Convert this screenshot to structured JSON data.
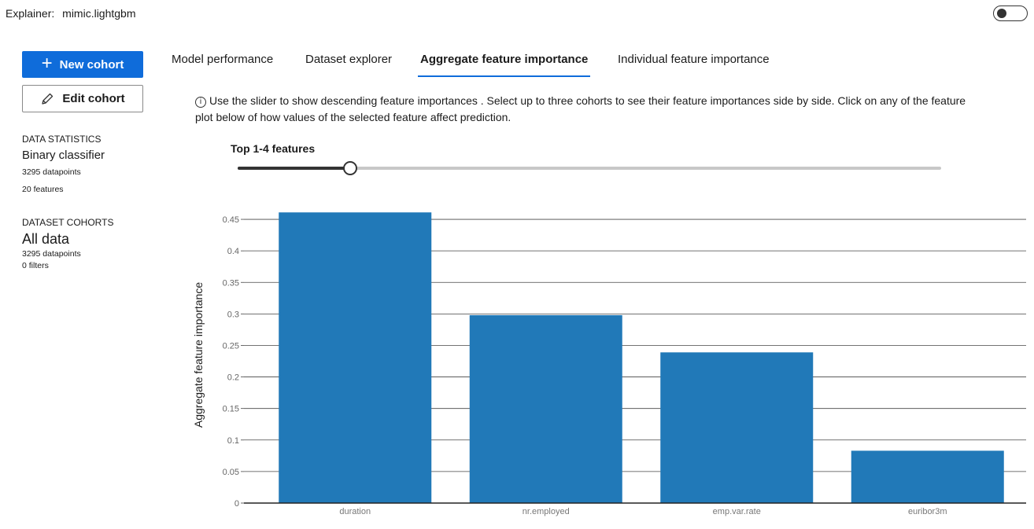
{
  "header": {
    "explainer_label": "Explainer:",
    "explainer_value": "mimic.lightgbm"
  },
  "sidebar": {
    "new_cohort_label": "New cohort",
    "edit_cohort_label": "Edit cohort",
    "stats_heading": "DATA STATISTICS",
    "stats_type": "Binary classifier",
    "stats_datapoints": "3295 datapoints",
    "stats_features": "20 features",
    "cohorts_heading": "DATASET COHORTS",
    "cohort_name": "All data",
    "cohort_datapoints": "3295 datapoints",
    "cohort_filters": "0 filters"
  },
  "tabs": [
    {
      "label": "Model performance"
    },
    {
      "label": "Dataset explorer"
    },
    {
      "label": "Aggregate feature importance"
    },
    {
      "label": "Individual feature importance"
    }
  ],
  "main": {
    "instruction_line1": "Use the slider to show descending feature importances . Select up to three cohorts to see their feature importances side by side. Click on any of the feature",
    "instruction_line2": "plot below of how values of the selected feature affect prediction.",
    "slider_label": "Top 1-4 features",
    "slider_value_fraction": 0.16
  },
  "colors": {
    "accent": "#0f6cda",
    "bar": "#2179b8"
  },
  "chart_data": {
    "type": "bar",
    "categories": [
      "duration",
      "nr.employed",
      "emp.var.rate",
      "euribor3m"
    ],
    "values": [
      0.461,
      0.298,
      0.239,
      0.083
    ],
    "ylabel": "Aggregate feature importance",
    "ylim": [
      0,
      0.47
    ],
    "yticks": [
      "0",
      "0.05",
      "0.1",
      "0.15",
      "0.2",
      "0.25",
      "0.3",
      "0.35",
      "0.4",
      "0.45"
    ],
    "grid": true
  }
}
